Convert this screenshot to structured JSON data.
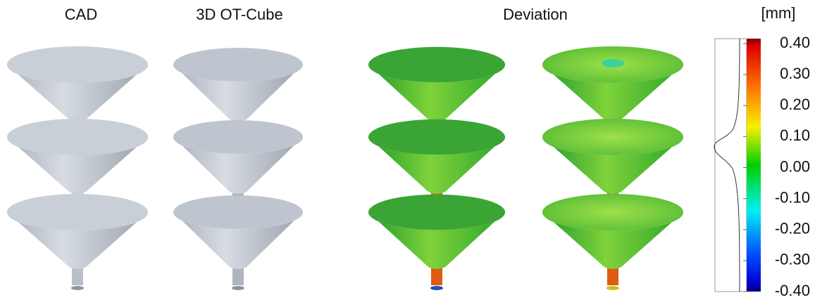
{
  "titles": [
    "CAD",
    "3D OT-Cube",
    "Deviation"
  ],
  "colorbar": {
    "unit": "[mm]",
    "range": [
      -0.4,
      0.4
    ],
    "ticks": [
      {
        "value": 0.4,
        "label": "0.40"
      },
      {
        "value": 0.3,
        "label": "0.30"
      },
      {
        "value": 0.2,
        "label": "0.20"
      },
      {
        "value": 0.1,
        "label": "0.10"
      },
      {
        "value": 0,
        "label": "0.00"
      },
      {
        "value": -0.1,
        "label": "-0.10"
      },
      {
        "value": -0.2,
        "label": "-0.20"
      },
      {
        "value": -0.3,
        "label": "-0.30"
      },
      {
        "value": -0.4,
        "label": "-0.40"
      }
    ]
  }
}
